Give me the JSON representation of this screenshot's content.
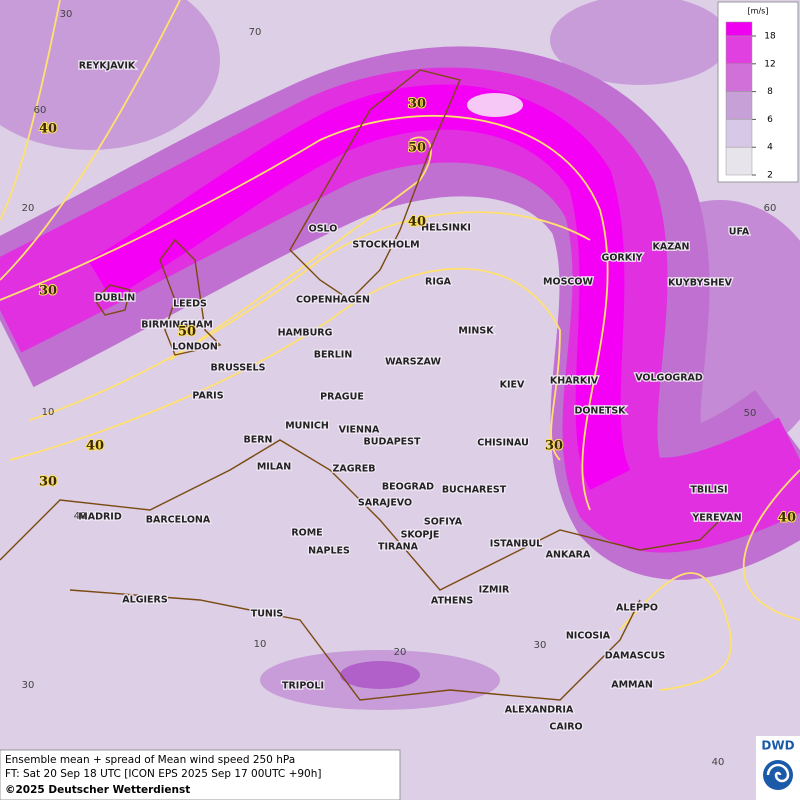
{
  "legend": {
    "unit": "[m/s]",
    "ticks": [
      18,
      12,
      8,
      6,
      4,
      2
    ]
  },
  "cities": [
    "REYKJAVIK",
    "OSLO",
    "STOCKHOLM",
    "HELSINKI",
    "DUBLIN",
    "LEEDS",
    "BIRMINGHAM",
    "LONDON",
    "COPENHAGEN",
    "HAMBURG",
    "BERLIN",
    "RIGA",
    "MINSK",
    "MOSCOW",
    "GORKIY",
    "KAZAN",
    "UFA",
    "KUYBYSHEV",
    "WARSZAW",
    "KIEV",
    "KHARKIV",
    "VOLGOGRAD",
    "DONETSK",
    "BRUSSELS",
    "PARIS",
    "PRAGUE",
    "MUNICH",
    "VIENNA",
    "BERN",
    "BUDAPEST",
    "MILAN",
    "ZAGREB",
    "CHISINAU",
    "BEOGRAD",
    "BUCHAREST",
    "SARAJEVO",
    "MADRID",
    "BARCELONA",
    "ROME",
    "NAPLES",
    "SOFIYA",
    "SKOPJE",
    "TIRANA",
    "ISTANBUL",
    "ANKARA",
    "TBILISI",
    "YEREVAN",
    "ALGIERS",
    "TUNIS",
    "ATHENS",
    "IZMIR",
    "ALEPPO",
    "NICOSIA",
    "DAMASCUS",
    "AMMAN",
    "TRIPOLI",
    "ALEXANDRIA",
    "CAIRO"
  ],
  "contour_labels": [
    40,
    30,
    40,
    30,
    30,
    50,
    40,
    50,
    30,
    40
  ],
  "grid_labels": [
    30,
    70,
    60,
    20,
    10,
    40,
    30,
    60,
    50,
    30,
    20,
    10,
    40
  ],
  "caption": {
    "line1": "Ensemble mean + spread of Mean wind speed 250 hPa",
    "line2": "FT: Sat 20 Sep 18 UTC [ICON EPS 2025 Sep 17 00UTC +90h]",
    "copyright": "©2025 Deutscher Wetterdienst"
  },
  "logo": "DWD"
}
